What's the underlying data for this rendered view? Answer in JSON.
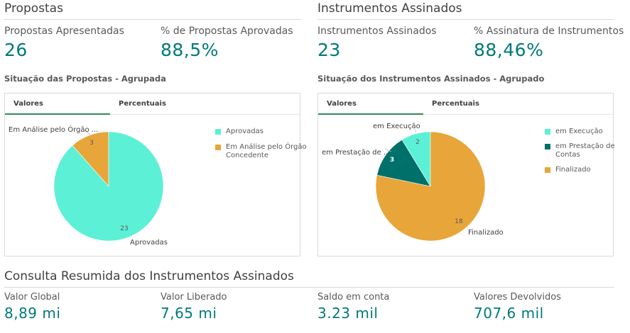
{
  "propostas": {
    "title": "Propostas",
    "kpis": [
      {
        "label": "Propostas Apresentadas",
        "value": "26"
      },
      {
        "label": "% de Propostas Aprovadas",
        "value": "88,5%"
      }
    ],
    "chart_title": "Situação das Propostas - Agrupada",
    "tabs": [
      "Valores",
      "Percentuais"
    ],
    "legend": [
      {
        "label": "Aprovadas",
        "color": "#5cf0d6"
      },
      {
        "label": "Em Análise pelo Órgão Concedente",
        "label_lines": [
          "Em Análise pelo Órgão",
          "Concedente"
        ],
        "color": "#e8a53a"
      }
    ],
    "slice_labels": {
      "outer_aprovadas": "Aprovadas",
      "outer_analise": "Em Análise pelo Órgão ...",
      "value_aprovadas": "23",
      "value_analise": "3"
    }
  },
  "instrumentos": {
    "title": "Instrumentos Assinados",
    "kpis": [
      {
        "label": "Instrumentos Assinados",
        "value": "23"
      },
      {
        "label": "% Assinatura de Instrumentos",
        "value": "88,46%"
      }
    ],
    "chart_title": "Situação dos Instrumentos Assinados - Agrupado",
    "tabs": [
      "Valores",
      "Percentuais"
    ],
    "legend": [
      {
        "label": "em Execução",
        "color": "#5cf0d6"
      },
      {
        "label": "em Prestação de Contas",
        "label_lines": [
          "em Prestação de",
          "Contas"
        ],
        "color": "#00706b"
      },
      {
        "label": "Finalizado",
        "color": "#e8a53a"
      }
    ],
    "slice_labels": {
      "outer_execucao": "em Execução",
      "outer_prestacao": "em Prestação de ...",
      "outer_finalizado": "Finalizado",
      "value_execucao": "2",
      "value_prestacao": "3",
      "value_finalizado": "18"
    }
  },
  "consulta": {
    "title": "Consulta Resumida dos Instrumentos Assinados",
    "kpis": [
      {
        "label": "Valor Global",
        "value": "8,89 mi"
      },
      {
        "label": "Valor Liberado",
        "value": "7,65 mi"
      },
      {
        "label": "Saldo em conta",
        "value": "3.23 mil"
      },
      {
        "label": "Valores Devolvidos",
        "value": "707,6 mil"
      }
    ]
  },
  "chart_data": [
    {
      "type": "pie",
      "title": "Situação das Propostas - Agrupada",
      "categories": [
        "Aprovadas",
        "Em Análise pelo Órgão Concedente"
      ],
      "values": [
        23,
        3
      ],
      "colors": [
        "#5cf0d6",
        "#e8a53a"
      ],
      "legend": "right"
    },
    {
      "type": "pie",
      "title": "Situação dos Instrumentos Assinados - Agrupado",
      "categories": [
        "em Execução",
        "em Prestação de Contas",
        "Finalizado"
      ],
      "values": [
        2,
        3,
        18
      ],
      "colors": [
        "#5cf0d6",
        "#00706b",
        "#e8a53a"
      ],
      "legend": "right"
    }
  ]
}
